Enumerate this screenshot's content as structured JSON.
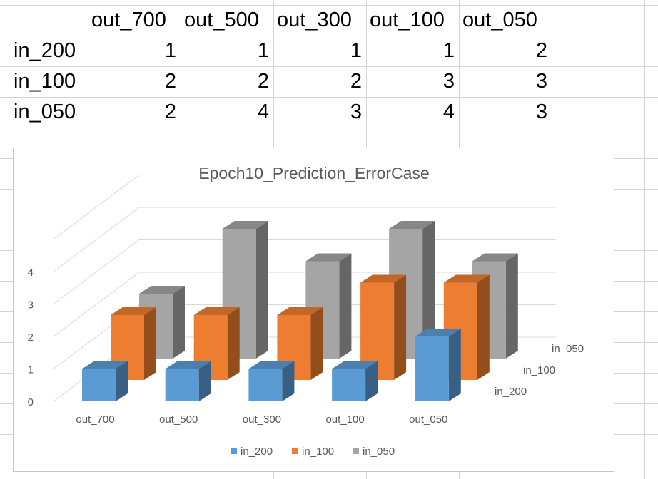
{
  "sheet": {
    "col_headers": [
      "out_700",
      "out_500",
      "out_300",
      "out_100",
      "out_050"
    ],
    "rows": [
      {
        "label": "in_200",
        "values": [
          "1",
          "1",
          "1",
          "1",
          "2"
        ]
      },
      {
        "label": "in_100",
        "values": [
          "2",
          "2",
          "2",
          "3",
          "3"
        ]
      },
      {
        "label": "in_050",
        "values": [
          "2",
          "4",
          "3",
          "4",
          "3"
        ]
      }
    ]
  },
  "chart_data": {
    "type": "bar",
    "subtype": "3d-column",
    "title": "Epoch10_Prediction_ErrorCase",
    "categories": [
      "out_700",
      "out_500",
      "out_300",
      "out_100",
      "out_050"
    ],
    "series": [
      {
        "name": "in_200",
        "values": [
          1,
          1,
          1,
          1,
          2
        ],
        "color": "#5b9bd5"
      },
      {
        "name": "in_100",
        "values": [
          2,
          2,
          2,
          3,
          3
        ],
        "color": "#ed7d31"
      },
      {
        "name": "in_050",
        "values": [
          2,
          4,
          3,
          4,
          3
        ],
        "color": "#a5a5a5"
      }
    ],
    "ylim": [
      0,
      4
    ],
    "yticks": [
      "0",
      "1",
      "2",
      "3",
      "4"
    ],
    "grid": true,
    "legend": "bottom"
  }
}
